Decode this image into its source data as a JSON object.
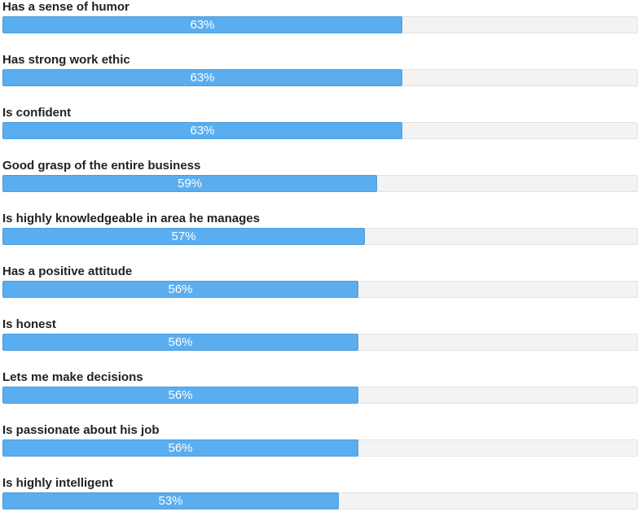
{
  "chart_data": {
    "type": "bar",
    "orientation": "horizontal",
    "value_format": "percent",
    "xlim": [
      0,
      100
    ],
    "grid": false,
    "categories": [
      "Has a sense of humor",
      "Has strong work ethic",
      "Is confident",
      "Good grasp of the entire business",
      "Is highly knowledgeable in area he manages",
      "Has a positive attitude",
      "Is honest",
      "Lets me make decisions",
      "Is passionate about his job",
      "Is highly intelligent"
    ],
    "values": [
      63,
      63,
      63,
      59,
      57,
      56,
      56,
      56,
      56,
      53
    ],
    "value_labels": [
      "63%",
      "63%",
      "63%",
      "59%",
      "57%",
      "56%",
      "56%",
      "56%",
      "56%",
      "53%"
    ]
  },
  "colors": {
    "bar_fill": "#5aaef0",
    "track": "#f3f3f3",
    "label_text": "#222222",
    "value_text": "#ffffff"
  }
}
